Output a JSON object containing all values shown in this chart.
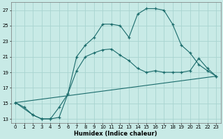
{
  "xlabel": "Humidex (Indice chaleur)",
  "bg_color": "#c8eae6",
  "grid_color": "#a8d4d0",
  "line_color": "#1a6b6b",
  "xlim_min": -0.5,
  "xlim_max": 23.5,
  "ylim_min": 12.5,
  "ylim_max": 28.0,
  "yticks": [
    13,
    15,
    17,
    19,
    21,
    23,
    25,
    27
  ],
  "xticks": [
    0,
    1,
    2,
    3,
    4,
    5,
    6,
    7,
    8,
    9,
    10,
    11,
    12,
    13,
    14,
    15,
    16,
    17,
    18,
    19,
    20,
    21,
    22,
    23
  ],
  "line1_x": [
    0,
    1,
    2,
    3,
    4,
    5,
    6,
    7,
    8,
    9,
    10,
    11,
    12,
    13,
    14,
    15,
    16,
    17,
    18,
    19,
    20,
    21,
    22,
    23
  ],
  "line1_y": [
    15.1,
    14.5,
    13.5,
    13.0,
    13.0,
    13.2,
    16.2,
    19.2,
    21.0,
    21.5,
    21.9,
    22.0,
    21.2,
    20.5,
    19.5,
    19.0,
    19.2,
    19.0,
    19.0,
    19.0,
    19.2,
    20.8,
    19.5,
    18.5
  ],
  "line2_x": [
    0,
    2,
    3,
    4,
    5,
    6,
    7,
    8,
    9,
    10,
    11,
    12,
    13,
    14,
    15,
    16,
    17,
    18,
    19,
    20,
    21,
    22,
    23
  ],
  "line2_y": [
    15.1,
    13.5,
    13.0,
    13.0,
    14.5,
    16.2,
    21.0,
    22.5,
    23.5,
    25.2,
    25.2,
    25.0,
    23.5,
    26.5,
    27.2,
    27.2,
    27.0,
    25.2,
    22.5,
    21.5,
    20.0,
    19.2,
    18.5
  ],
  "line3_x": [
    0,
    23
  ],
  "line3_y": [
    15.1,
    18.5
  ]
}
